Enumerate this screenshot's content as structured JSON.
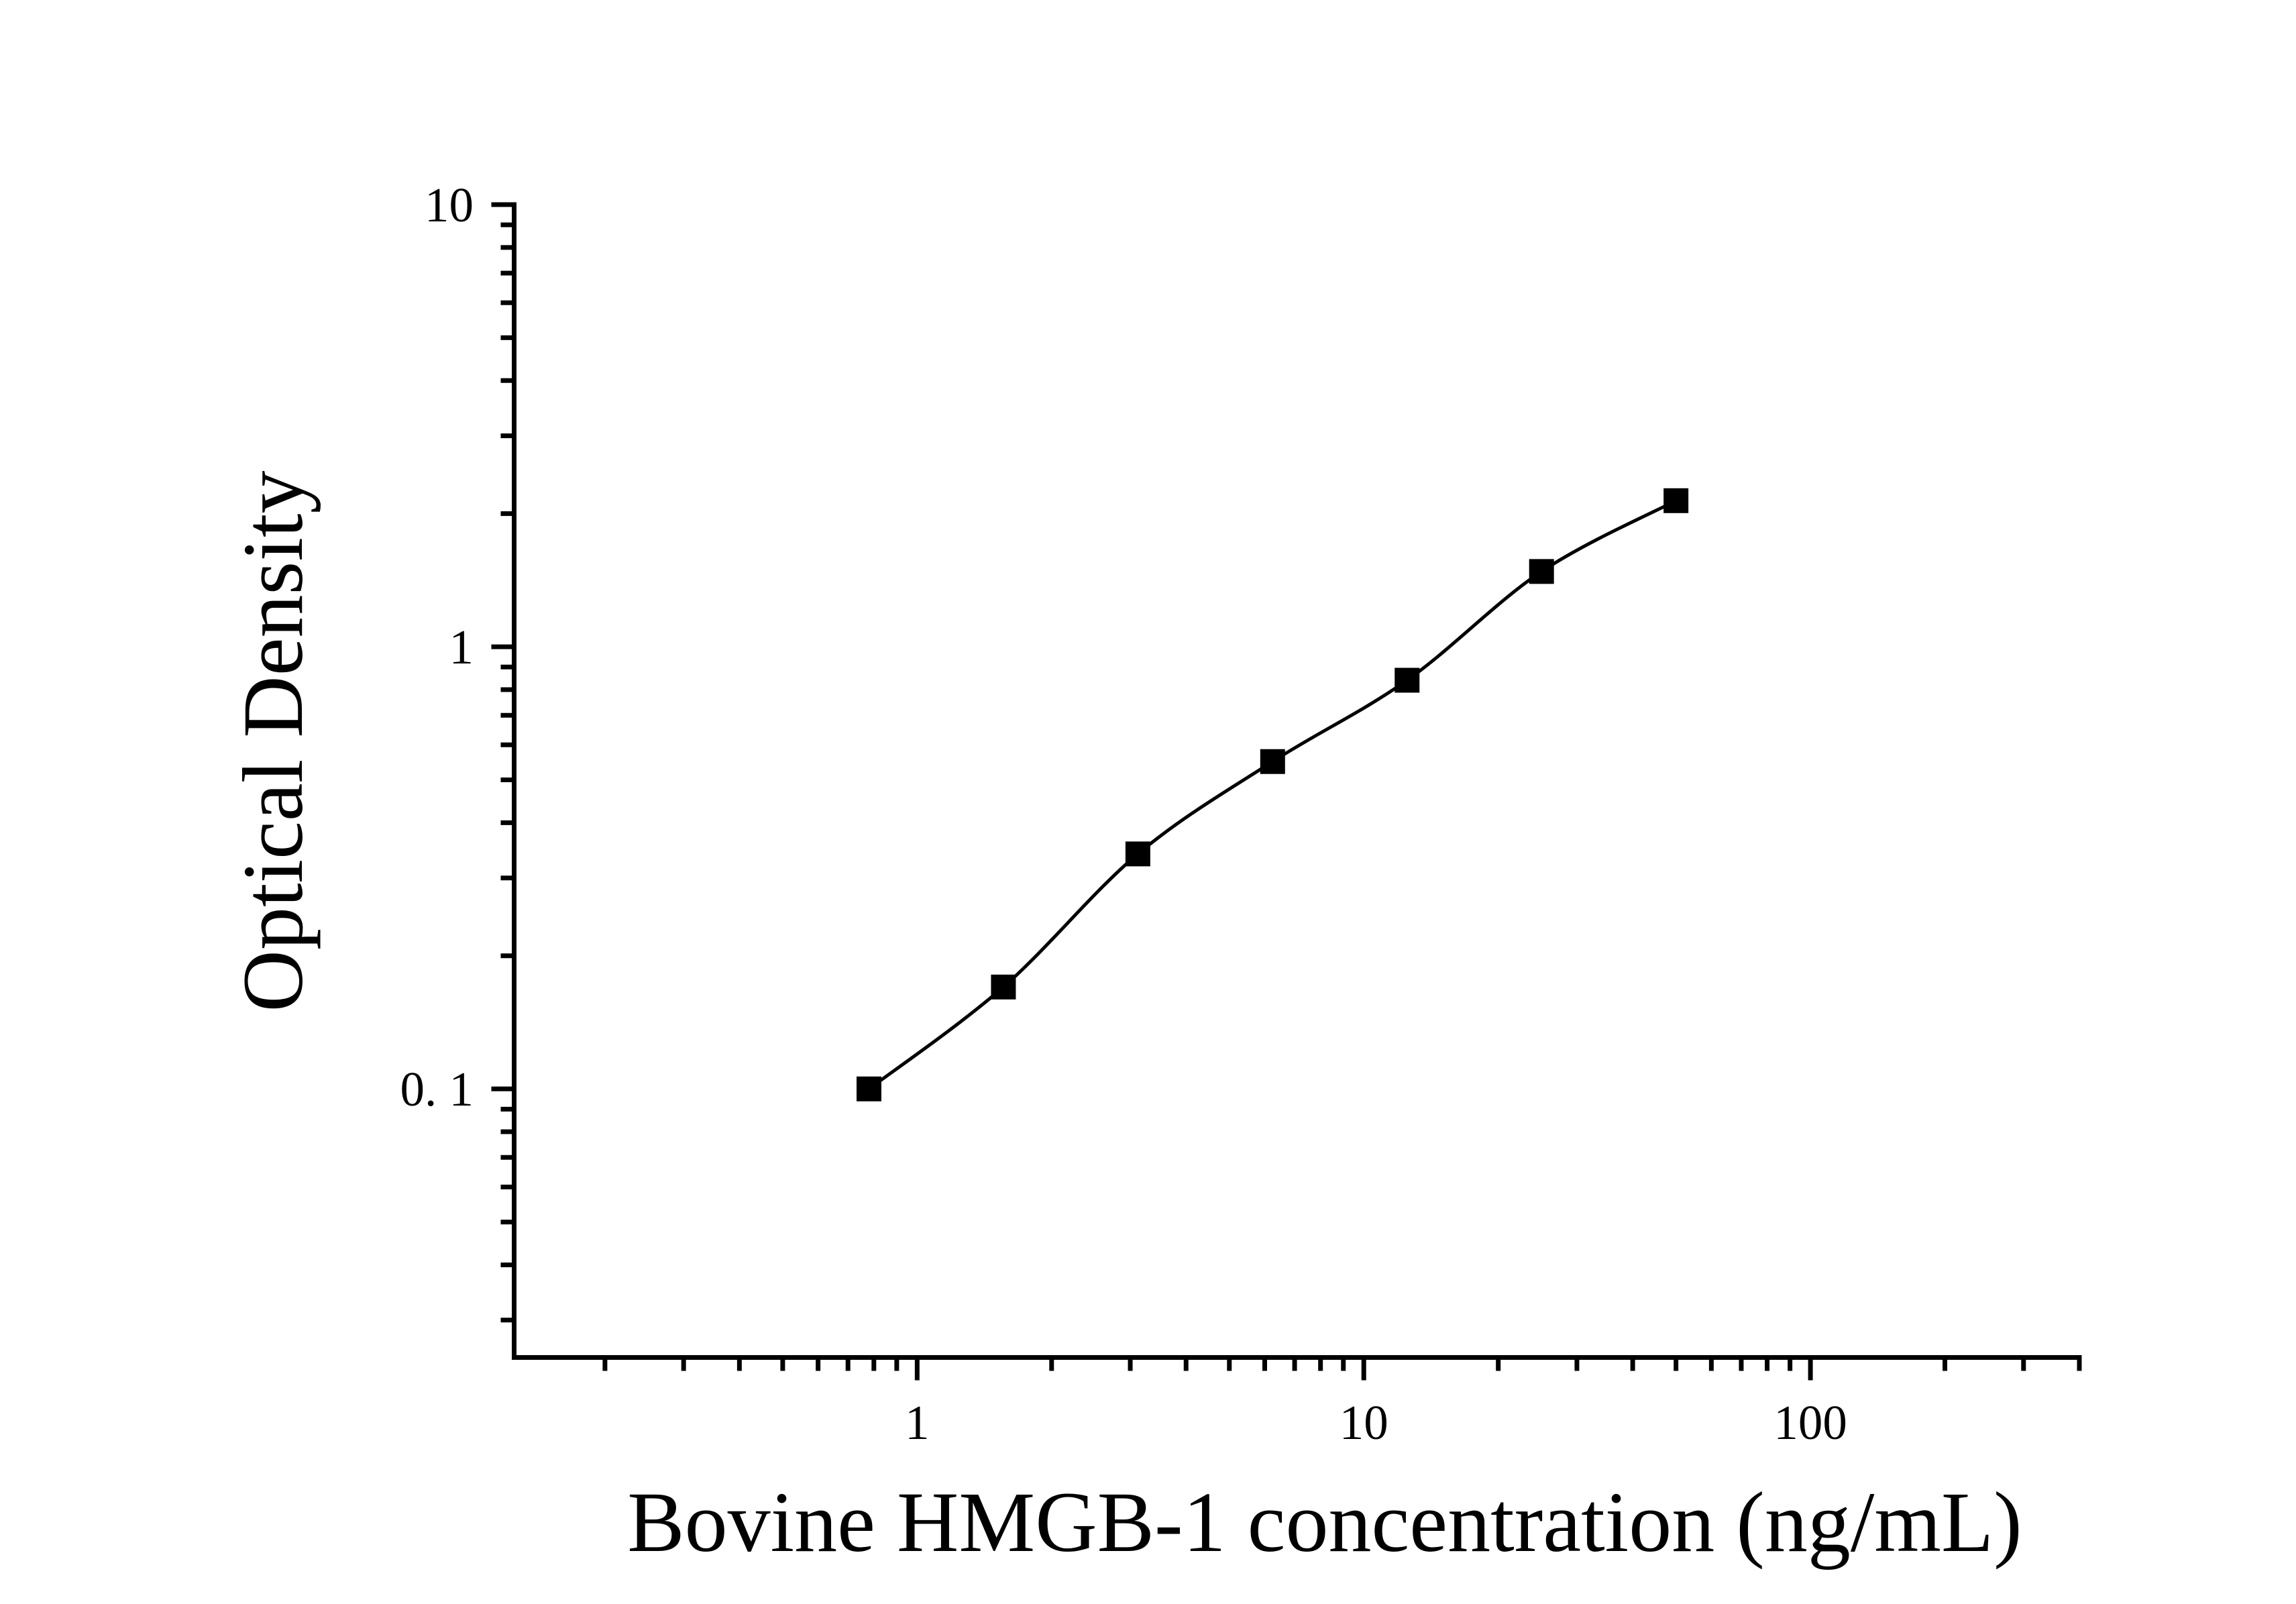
{
  "figure": {
    "background": "#ffffff",
    "ink_color": "#000000"
  },
  "chart_data": {
    "type": "scatter",
    "title": "",
    "xlabel": "Bovine HMGB-1 concentration (ng/mL)",
    "ylabel": "Optical Density",
    "x_scale": "log",
    "y_scale": "log",
    "x_range": [
      0.125,
      400
    ],
    "y_range": [
      0.025,
      10
    ],
    "grid": false,
    "legend": "none",
    "x_major_ticks": [
      {
        "value": 1,
        "label": "1"
      },
      {
        "value": 10,
        "label": "10"
      },
      {
        "value": 100,
        "label": "100"
      }
    ],
    "y_major_ticks": [
      {
        "value": 0.1,
        "label": "0. 1"
      },
      {
        "value": 1,
        "label": "1"
      },
      {
        "value": 10,
        "label": "10"
      }
    ],
    "series": [
      {
        "name": "standard-curve",
        "marker": "filled-square",
        "line": "smooth-fit",
        "color": "#000000",
        "points": [
          {
            "x": 0.78,
            "y": 0.1
          },
          {
            "x": 1.56,
            "y": 0.17
          },
          {
            "x": 3.12,
            "y": 0.34
          },
          {
            "x": 6.25,
            "y": 0.55
          },
          {
            "x": 12.5,
            "y": 0.84
          },
          {
            "x": 25,
            "y": 1.48
          },
          {
            "x": 50,
            "y": 2.14
          }
        ]
      }
    ]
  }
}
